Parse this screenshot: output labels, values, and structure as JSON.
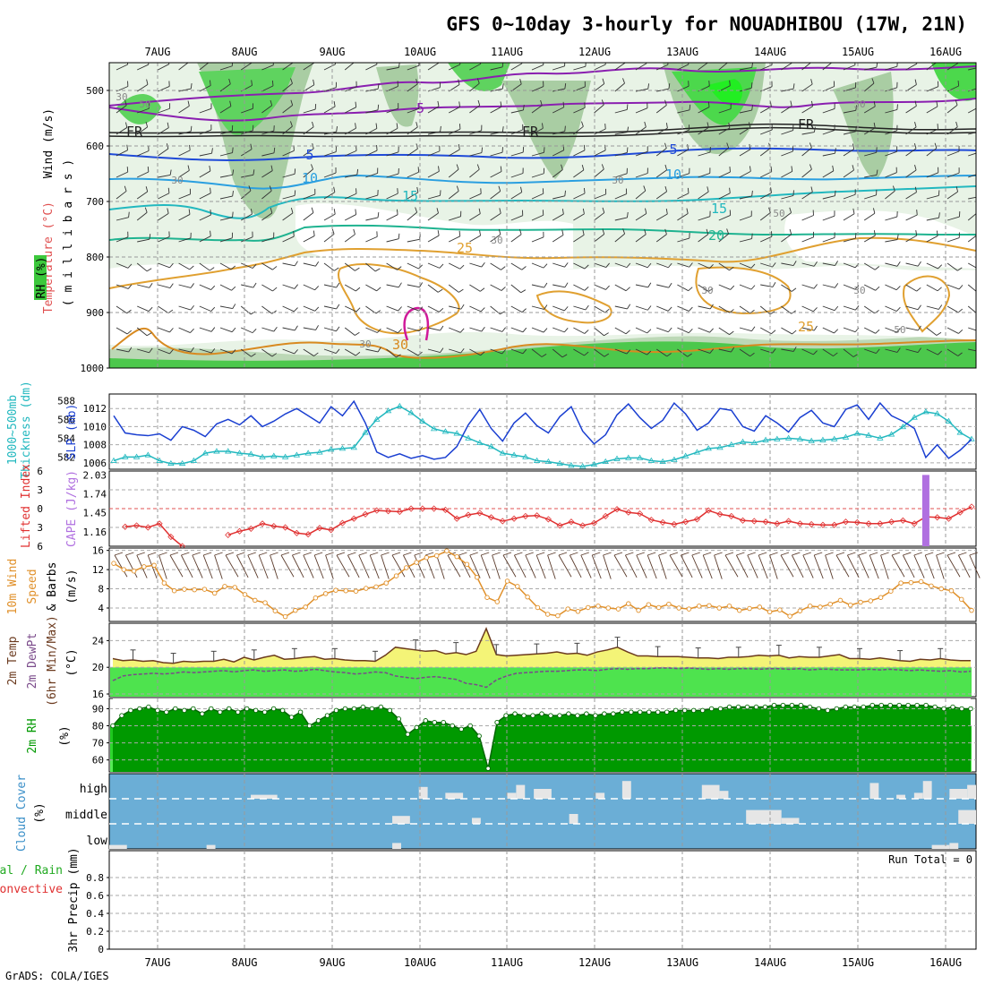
{
  "title": "GFS 0~10day 3-hourly for NOUADHIBOU (17W, 21N)",
  "footer": "GrADS: COLA/IGES",
  "run_total": "Run Total = 0",
  "dates": [
    "7AUG",
    "8AUG",
    "9AUG",
    "10AUG",
    "11AUG",
    "12AUG",
    "13AUG",
    "14AUG",
    "15AUG",
    "16AUG"
  ],
  "colors": {
    "slp": "#1a3fd1",
    "thickness": "#22b8bf",
    "lifted": "#e03030",
    "cape": "#b070e0",
    "wind": "#e0902a",
    "temp_fill": "#f4f477",
    "temp_line": "#6b3a1e",
    "dew": "#7a4a8a",
    "rh_dark": "#009900",
    "rh_mid": "#2ed82e",
    "rh_light": "#55ee55",
    "cloud": "#6baed6",
    "cloud_clear": "#e6e6e6",
    "green_label": "#009900"
  },
  "labels": {
    "upper": {
      "wind": "Wind (m/s)",
      "temp": "Temperature (°C)",
      "rh": "RH (%)",
      "millibars": "( m i l l i b a r s )"
    },
    "thick": {
      "a": "1000~500mb",
      "b": "Thickness (dm)",
      "slp": "SLP (mb)"
    },
    "li": {
      "a": "Lifted Index",
      "cape": "CAPE (J/kg)"
    },
    "wind10": {
      "a": "10m Wind",
      "b": "Speed",
      "c": "& Barbs",
      "unit": "(m/s)"
    },
    "temp2m": {
      "a": "2m Temp",
      "b": "2m DewPt",
      "c": "(6hr Min/Max)",
      "unit": "(°C)"
    },
    "rh2m": {
      "a": "2m RH",
      "unit": "(%)"
    },
    "cloud": {
      "a": "Cloud Cover",
      "unit": "(%)",
      "high": "high",
      "middle": "middle",
      "low": "low"
    },
    "precip": {
      "a": "Total / Rain",
      "b": "Convective",
      "c": "3hr Precip (mm)"
    }
  },
  "chart_data": [
    {
      "type": "heatmap",
      "panel": "upper-air cross-section",
      "ylabel": "millibars",
      "y_ticks": [
        500,
        600,
        700,
        800,
        900,
        1000
      ],
      "ylim": [
        1000,
        450
      ],
      "isotherm_labels": [
        "-5",
        "5",
        "10",
        "15",
        "20",
        "25",
        "30"
      ],
      "freezing_level_label": "FR",
      "rh_label_value": "30"
    },
    {
      "type": "line",
      "panel": "thickness-slp",
      "y_left_ticks": [
        582,
        584,
        586,
        588
      ],
      "y_right_ticks": [
        1006,
        1008,
        1010,
        1012
      ],
      "series": [
        {
          "name": "1000~500mb Thickness (dm)",
          "values": [
            581.6,
            582.0,
            582.0,
            582.2,
            581.6,
            581.3,
            581.3,
            581.6,
            582.4,
            582.6,
            582.6,
            582.4,
            582.3,
            582.0,
            582.1,
            582.0,
            582.2,
            582.4,
            582.5,
            582.8,
            582.9,
            583.0,
            584.6,
            586.0,
            586.9,
            587.4,
            586.7,
            585.8,
            585.0,
            584.7,
            584.5,
            584.0,
            583.5,
            583.1,
            582.4,
            582.2,
            582.0,
            581.6,
            581.5,
            581.3,
            581.1,
            581.0,
            581.2,
            581.5,
            581.8,
            581.9,
            581.9,
            581.6,
            581.5,
            581.7,
            582.1,
            582.5,
            582.9,
            583.0,
            583.3,
            583.6,
            583.5,
            583.8,
            583.9,
            584.0,
            583.9,
            583.7,
            583.8,
            583.9,
            584.1,
            584.5,
            584.3,
            584.0,
            584.4,
            585.2,
            586.2,
            586.8,
            586.6,
            585.8,
            584.6,
            583.9
          ]
        },
        {
          "name": "SLP (mb)",
          "values": [
            1011.2,
            1009.3,
            1009.1,
            1009.0,
            1009.2,
            1008.5,
            1010.0,
            1009.6,
            1008.9,
            1010.3,
            1010.8,
            1010.2,
            1011.2,
            1010.0,
            1010.6,
            1011.4,
            1012.0,
            1011.2,
            1010.4,
            1012.2,
            1011.2,
            1012.8,
            1010.4,
            1007.2,
            1006.6,
            1007.0,
            1006.5,
            1006.8,
            1006.4,
            1006.6,
            1007.8,
            1010.2,
            1011.9,
            1009.8,
            1008.4,
            1010.4,
            1011.5,
            1010.1,
            1009.3,
            1011.1,
            1012.2,
            1009.5,
            1008.1,
            1009.1,
            1011.3,
            1012.5,
            1011.0,
            1009.8,
            1010.7,
            1012.6,
            1011.4,
            1009.6,
            1010.4,
            1012.0,
            1011.8,
            1010.0,
            1009.5,
            1011.2,
            1010.4,
            1009.4,
            1011.0,
            1011.8,
            1010.4,
            1010.0,
            1011.9,
            1012.4,
            1010.8,
            1012.6,
            1011.2,
            1010.6,
            1009.8,
            1006.6,
            1008.0,
            1006.5,
            1007.4,
            1008.6
          ]
        }
      ]
    },
    {
      "type": "line",
      "panel": "lifted-index-cape",
      "y_left_ticks": [
        -6,
        -3,
        0,
        3,
        6
      ],
      "y_right_ticks": [
        1.16,
        1.45,
        1.74,
        2.03
      ],
      "series": [
        {
          "name": "Lifted Index",
          "values": [
            null,
            2.9,
            2.7,
            3.0,
            2.4,
            4.5,
            6.0,
            null,
            null,
            null,
            4.2,
            3.6,
            3.2,
            2.4,
            2.8,
            3.0,
            3.9,
            4.1,
            3.1,
            3.4,
            2.3,
            1.6,
            0.9,
            0.3,
            0.4,
            0.5,
            0.0,
            0.0,
            0.0,
            0.2,
            1.6,
            1.0,
            0.7,
            1.4,
            2.0,
            1.6,
            1.2,
            1.1,
            1.7,
            2.7,
            2.1,
            2.7,
            2.3,
            1.2,
            0.1,
            0.6,
            0.8,
            1.8,
            2.2,
            2.5,
            2.1,
            1.7,
            0.3,
            0.9,
            1.2,
            1.9,
            2.0,
            2.1,
            2.4,
            2.0,
            2.4,
            2.5,
            2.6,
            2.6,
            2.1,
            2.2,
            2.4,
            2.4,
            2.1,
            1.9,
            2.4,
            1.3,
            1.4,
            1.6,
            0.6,
            -0.3
          ]
        },
        {
          "name": "CAPE (J/kg)",
          "bar_index": 71,
          "value": 2.03
        }
      ]
    },
    {
      "type": "line",
      "panel": "10m-wind",
      "ylabel": "(m/s)",
      "y_ticks": [
        4,
        8,
        12,
        16
      ],
      "series": [
        {
          "name": "Speed",
          "values": [
            13.3,
            12.0,
            11.7,
            12.6,
            12.9,
            9.2,
            7.6,
            7.9,
            7.8,
            7.9,
            7.1,
            8.5,
            8.3,
            6.8,
            5.6,
            5.1,
            3.4,
            2.2,
            3.5,
            4.2,
            6.1,
            7.0,
            7.7,
            7.6,
            7.5,
            8.1,
            8.4,
            9.2,
            10.7,
            12.4,
            13.5,
            14.5,
            14.9,
            15.9,
            14.7,
            13.1,
            10.4,
            6.2,
            5.3,
            9.6,
            8.5,
            6.3,
            4.1,
            2.7,
            2.4,
            3.8,
            3.3,
            4.1,
            4.4,
            4.0,
            3.8,
            4.9,
            3.5,
            4.7,
            4.1,
            4.8,
            4.0,
            3.8,
            4.4,
            4.5,
            4.0,
            4.4,
            3.5,
            3.9,
            4.2,
            3.2,
            3.6,
            2.3,
            3.4,
            4.4,
            4.2,
            4.8,
            5.6,
            4.6,
            5.2,
            5.5,
            6.2,
            7.5,
            9.2,
            9.3,
            9.5,
            8.6,
            8.0,
            7.6,
            5.8,
            3.5
          ]
        }
      ]
    },
    {
      "type": "area",
      "panel": "2m-temp",
      "ylabel": "(°C)",
      "y_ticks": [
        16,
        20,
        24
      ],
      "series": [
        {
          "name": "2m Temp",
          "values": [
            21.3,
            21.0,
            21.1,
            20.9,
            21.0,
            20.7,
            20.6,
            20.9,
            20.8,
            20.9,
            20.9,
            21.2,
            20.8,
            21.5,
            21.1,
            21.5,
            21.8,
            21.2,
            21.3,
            21.5,
            21.6,
            21.2,
            21.3,
            21.1,
            21.0,
            21.0,
            20.9,
            21.8,
            23.0,
            22.8,
            22.6,
            22.4,
            22.5,
            22.0,
            22.2,
            21.9,
            22.4,
            25.8,
            21.9,
            21.7,
            21.8,
            21.9,
            22.0,
            22.1,
            22.3,
            22.0,
            22.1,
            21.8,
            22.3,
            22.6,
            23.0,
            22.3,
            21.7,
            21.7,
            21.6,
            21.6,
            21.6,
            21.5,
            21.4,
            21.4,
            21.3,
            21.5,
            21.5,
            21.6,
            21.8,
            21.7,
            21.8,
            21.4,
            21.6,
            21.5,
            21.5,
            21.7,
            21.9,
            21.3,
            21.3,
            21.2,
            21.4,
            21.2,
            21.0,
            20.9,
            21.2,
            21.1,
            21.3,
            21.1,
            21.0,
            21.0
          ]
        },
        {
          "name": "2m DewPt",
          "values": [
            18.0,
            18.7,
            18.9,
            19.0,
            19.1,
            19.0,
            19.1,
            19.3,
            19.2,
            19.3,
            19.4,
            19.5,
            19.3,
            19.5,
            19.6,
            19.4,
            19.5,
            19.6,
            19.4,
            19.5,
            19.7,
            19.5,
            19.3,
            19.2,
            19.0,
            19.1,
            19.3,
            19.2,
            18.7,
            18.5,
            18.3,
            18.5,
            18.6,
            18.4,
            18.2,
            17.6,
            17.4,
            17.0,
            18.1,
            18.7,
            19.1,
            19.2,
            19.3,
            19.4,
            19.4,
            19.5,
            19.6,
            19.6,
            19.5,
            19.7,
            19.8,
            19.7,
            19.8,
            19.8,
            19.9,
            19.9,
            19.8,
            19.9,
            19.8,
            19.7,
            19.8,
            19.7,
            19.8,
            19.8,
            19.7,
            19.8,
            19.8,
            19.7,
            19.8,
            19.6,
            19.7,
            19.7,
            19.6,
            19.6,
            19.6,
            19.7,
            19.6,
            19.7,
            19.6,
            19.5,
            19.6,
            19.5,
            19.4,
            19.5,
            19.3,
            19.4
          ]
        }
      ]
    },
    {
      "type": "area",
      "panel": "2m-rh",
      "ylabel": "(%)",
      "y_ticks": [
        60,
        70,
        80,
        90
      ],
      "series": [
        {
          "name": "2m RH",
          "values": [
            80,
            86,
            89,
            90,
            91,
            89,
            88,
            90,
            89,
            90,
            87,
            90,
            88,
            90,
            88,
            90,
            89,
            88,
            90,
            89,
            85,
            88,
            80,
            83,
            86,
            89,
            90,
            90,
            91,
            90,
            91,
            89,
            84,
            75,
            79,
            83,
            82,
            82,
            80,
            78,
            80,
            74,
            55,
            82,
            86,
            87,
            86,
            86,
            87,
            86,
            86,
            87,
            86,
            87,
            86,
            87,
            87,
            88,
            88,
            88,
            88,
            88,
            88,
            89,
            89,
            89,
            89,
            90,
            90,
            91,
            91,
            91,
            91,
            91,
            92,
            92,
            92,
            92,
            91,
            90,
            89,
            90,
            91,
            91,
            91,
            92,
            92,
            92,
            92,
            92,
            92,
            92,
            91,
            90,
            91,
            90,
            90
          ]
        }
      ]
    },
    {
      "type": "heatmap",
      "panel": "cloud-cover",
      "rows": [
        "high",
        "middle",
        "low"
      ],
      "high_gaps": [
        [
          16,
          19,
          0.2
        ],
        [
          35,
          36,
          0.6
        ],
        [
          38,
          40,
          0.3
        ],
        [
          45,
          46,
          0.3
        ],
        [
          46,
          47,
          0.7
        ],
        [
          48,
          50,
          0.5
        ],
        [
          55,
          56,
          0.3
        ],
        [
          58,
          59,
          0.9
        ],
        [
          67,
          69,
          0.7
        ],
        [
          69,
          70,
          0.4
        ],
        [
          86,
          87,
          0.8
        ],
        [
          89,
          90,
          0.2
        ],
        [
          91,
          92,
          0.3
        ],
        [
          92,
          93,
          0.9
        ],
        [
          95,
          97,
          0.5
        ],
        [
          97,
          98,
          0.7
        ]
      ],
      "mid_gaps": [
        [
          32,
          34,
          0.4
        ],
        [
          41,
          42,
          0.3
        ],
        [
          52,
          53,
          0.5
        ],
        [
          72,
          76,
          0.7
        ],
        [
          76,
          78,
          0.3
        ],
        [
          96,
          98,
          0.7
        ]
      ],
      "low_gaps": [
        [
          0,
          2,
          0.2
        ],
        [
          11,
          12,
          0.2
        ],
        [
          32,
          33,
          0.3
        ],
        [
          93,
          95,
          0.2
        ],
        [
          95,
          96,
          0.3
        ]
      ]
    },
    {
      "type": "bar",
      "panel": "3hr-precip",
      "ylabel": "3hr Precip (mm)",
      "y_ticks": [
        0,
        0.2,
        0.4,
        0.6,
        0.8
      ],
      "ylim": [
        0,
        1
      ],
      "values": []
    }
  ]
}
